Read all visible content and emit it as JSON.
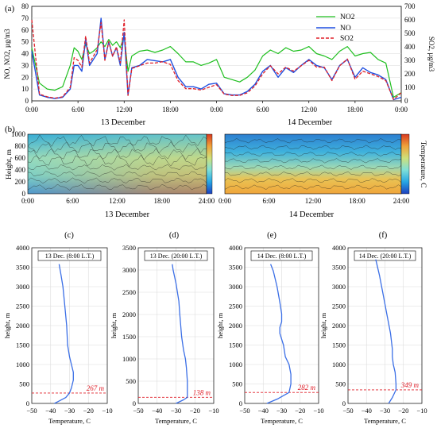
{
  "panel_labels": {
    "a": "(a)",
    "b": "(b)",
    "c": "(c)",
    "d": "(d)",
    "e": "(e)",
    "f": "(f)"
  },
  "colors": {
    "no2": "#1fbf1f",
    "no": "#1f4fe0",
    "so2": "#e0202a",
    "profile": "#3b6fe6",
    "mixing": "#e0202a"
  },
  "chart_data": [
    {
      "id": "a",
      "type": "line",
      "ylabel": "NO, NO2, µg/m3",
      "ylabel_right": "SO2, µg/m3",
      "ylim": [
        0,
        80
      ],
      "ylim_right": [
        0,
        700
      ],
      "yticks": [
        "0",
        "10",
        "20",
        "30",
        "40",
        "50",
        "60",
        "70",
        "80"
      ],
      "yticks_right": [
        "0",
        "100",
        "200",
        "300",
        "400",
        "500",
        "600",
        "700"
      ],
      "xticks": [
        "0:00",
        "6:00",
        "12:00",
        "18:00",
        "0:00",
        "6:00",
        "12:00",
        "18:00",
        "0:00"
      ],
      "day_labels": [
        "13 December",
        "14 December"
      ],
      "x_hours": [
        0,
        1,
        2,
        3,
        4,
        5,
        5.5,
        6,
        6.5,
        7,
        7.5,
        8,
        8.5,
        9,
        9.5,
        10,
        10.5,
        11,
        11.5,
        12,
        12.5,
        13,
        14,
        15,
        16,
        17,
        18,
        19,
        20,
        21,
        22,
        23,
        24,
        25,
        26,
        27,
        28,
        29,
        30,
        31,
        32,
        33,
        34,
        35,
        36,
        37,
        38,
        39,
        40,
        41,
        42,
        43,
        44,
        45,
        46,
        47,
        48
      ],
      "series": [
        {
          "name": "NO2",
          "axis": "left",
          "values": [
            45,
            15,
            10,
            9,
            12,
            30,
            45,
            42,
            35,
            48,
            40,
            42,
            45,
            50,
            46,
            52,
            47,
            50,
            45,
            55,
            25,
            38,
            42,
            43,
            41,
            43,
            46,
            40,
            33,
            33,
            30,
            32,
            35,
            20,
            18,
            16,
            20,
            26,
            38,
            43,
            40,
            45,
            42,
            43,
            46,
            40,
            38,
            35,
            42,
            46,
            38,
            40,
            41,
            35,
            32,
            3,
            7
          ]
        },
        {
          "name": "NO",
          "axis": "left",
          "values": [
            42,
            5,
            3,
            2,
            3,
            10,
            30,
            30,
            25,
            52,
            30,
            35,
            40,
            70,
            35,
            50,
            38,
            45,
            30,
            58,
            5,
            28,
            30,
            35,
            34,
            33,
            35,
            20,
            12,
            12,
            10,
            14,
            15,
            6,
            5,
            5,
            8,
            14,
            25,
            30,
            20,
            28,
            24,
            30,
            35,
            30,
            28,
            18,
            30,
            35,
            20,
            28,
            24,
            22,
            18,
            1,
            3
          ]
        },
        {
          "name": "SO2",
          "axis": "right",
          "values": [
            600,
            50,
            30,
            20,
            30,
            100,
            320,
            300,
            250,
            480,
            280,
            330,
            380,
            580,
            300,
            440,
            330,
            400,
            280,
            600,
            40,
            240,
            260,
            280,
            280,
            290,
            270,
            150,
            90,
            90,
            80,
            100,
            120,
            50,
            40,
            40,
            60,
            110,
            200,
            260,
            200,
            250,
            220,
            260,
            300,
            250,
            250,
            150,
            260,
            310,
            160,
            220,
            200,
            180,
            150,
            10,
            60
          ]
        }
      ]
    },
    {
      "id": "b",
      "type": "heatmap",
      "ylabel": "Height, m",
      "yticks": [
        "0",
        "200",
        "400",
        "600",
        "800",
        "1000"
      ],
      "xticks_left": [
        "0:00",
        "6:00",
        "12:00",
        "18:00",
        "24:00"
      ],
      "xticks_right": [
        "0:00",
        "6:00",
        "12:00",
        "18:00",
        "24:00"
      ],
      "day_labels": [
        "13 December",
        "14 December"
      ],
      "colorbar_label": "Temperature, C"
    },
    {
      "id": "c",
      "type": "line",
      "title": "13 Dec. (8:00 L.T.)",
      "xlabel": "Temperature, C",
      "ylabel": "height, m",
      "xlim": [
        -50,
        -10
      ],
      "ylim": [
        0,
        4000
      ],
      "xticks": [
        "−50",
        "−40",
        "−30",
        "−20",
        "−10"
      ],
      "yticks": [
        "0",
        "500",
        "1000",
        "1500",
        "2000",
        "2500",
        "3000",
        "3500",
        "4000"
      ],
      "mixing_height": 267,
      "mixing_label": "267 m",
      "temperature": [
        -38,
        -36,
        -32,
        -30,
        -29,
        -28,
        -28,
        -29,
        -30,
        -31,
        -31.5,
        -32.5,
        -33.5,
        -34.5,
        -35.5
      ],
      "height": [
        0,
        50,
        150,
        267,
        400,
        600,
        800,
        1000,
        1200,
        1500,
        2000,
        2500,
        3000,
        3300,
        3580
      ]
    },
    {
      "id": "d",
      "type": "line",
      "title": "13 Dec. (20:00 L.T.)",
      "xlabel": "Temperature, C",
      "ylabel": "height, m",
      "xlim": [
        -50,
        -10
      ],
      "ylim": [
        0,
        3500
      ],
      "xticks": [
        "−50",
        "−40",
        "−30",
        "−20",
        "−10"
      ],
      "yticks": [
        "0",
        "500",
        "1000",
        "1500",
        "2000",
        "2500",
        "3000",
        "3500"
      ],
      "mixing_height": 138,
      "mixing_label": "138 m",
      "temperature": [
        -30,
        -26,
        -24,
        -24,
        -24,
        -24.5,
        -25,
        -26,
        -27,
        -28,
        -28.5,
        -30,
        -31.5,
        -32
      ],
      "height": [
        0,
        80,
        138,
        250,
        500,
        800,
        1000,
        1200,
        1500,
        2000,
        2300,
        2700,
        3000,
        3130
      ]
    },
    {
      "id": "e",
      "type": "line",
      "title": "14 Dec. (8:00 L.T.)",
      "xlabel": "Temperature, C",
      "ylabel": "height, m",
      "xlim": [
        -50,
        -10
      ],
      "ylim": [
        0,
        4000
      ],
      "xticks": [
        "−50",
        "−40",
        "−30",
        "−20",
        "−10"
      ],
      "yticks": [
        "0",
        "500",
        "1000",
        "1500",
        "2000",
        "2500",
        "3000",
        "3500",
        "4000"
      ],
      "mixing_height": 282,
      "mixing_label": "282 m",
      "temperature": [
        -38,
        -32,
        -26,
        -25,
        -25,
        -26,
        -28,
        -29,
        -31,
        -31,
        -30,
        -30,
        -31,
        -32.5,
        -34.5,
        -36
      ],
      "height": [
        0,
        120,
        282,
        500,
        750,
        1000,
        1200,
        1500,
        1800,
        1950,
        2100,
        2300,
        2600,
        3000,
        3400,
        3580
      ]
    },
    {
      "id": "f",
      "type": "line",
      "title": "14 Dec. (20:00 L.T.)",
      "xlabel": "Temperature, C",
      "ylabel": "height, m",
      "xlim": [
        -50,
        -10
      ],
      "ylim": [
        0,
        4000
      ],
      "xticks": [
        "−50",
        "−40",
        "−30",
        "−20",
        "−10"
      ],
      "yticks": [
        "0",
        "500",
        "1000",
        "1500",
        "2000",
        "2500",
        "3000",
        "3500",
        "4000"
      ],
      "mixing_height": 349,
      "mixing_label": "349 m",
      "temperature": [
        -28,
        -26,
        -24,
        -24,
        -24.5,
        -25.5,
        -26,
        -26,
        -27,
        -29,
        -31,
        -33,
        -35
      ],
      "height": [
        0,
        150,
        349,
        500,
        800,
        1000,
        1200,
        1400,
        1800,
        2300,
        2800,
        3300,
        3700
      ]
    }
  ]
}
